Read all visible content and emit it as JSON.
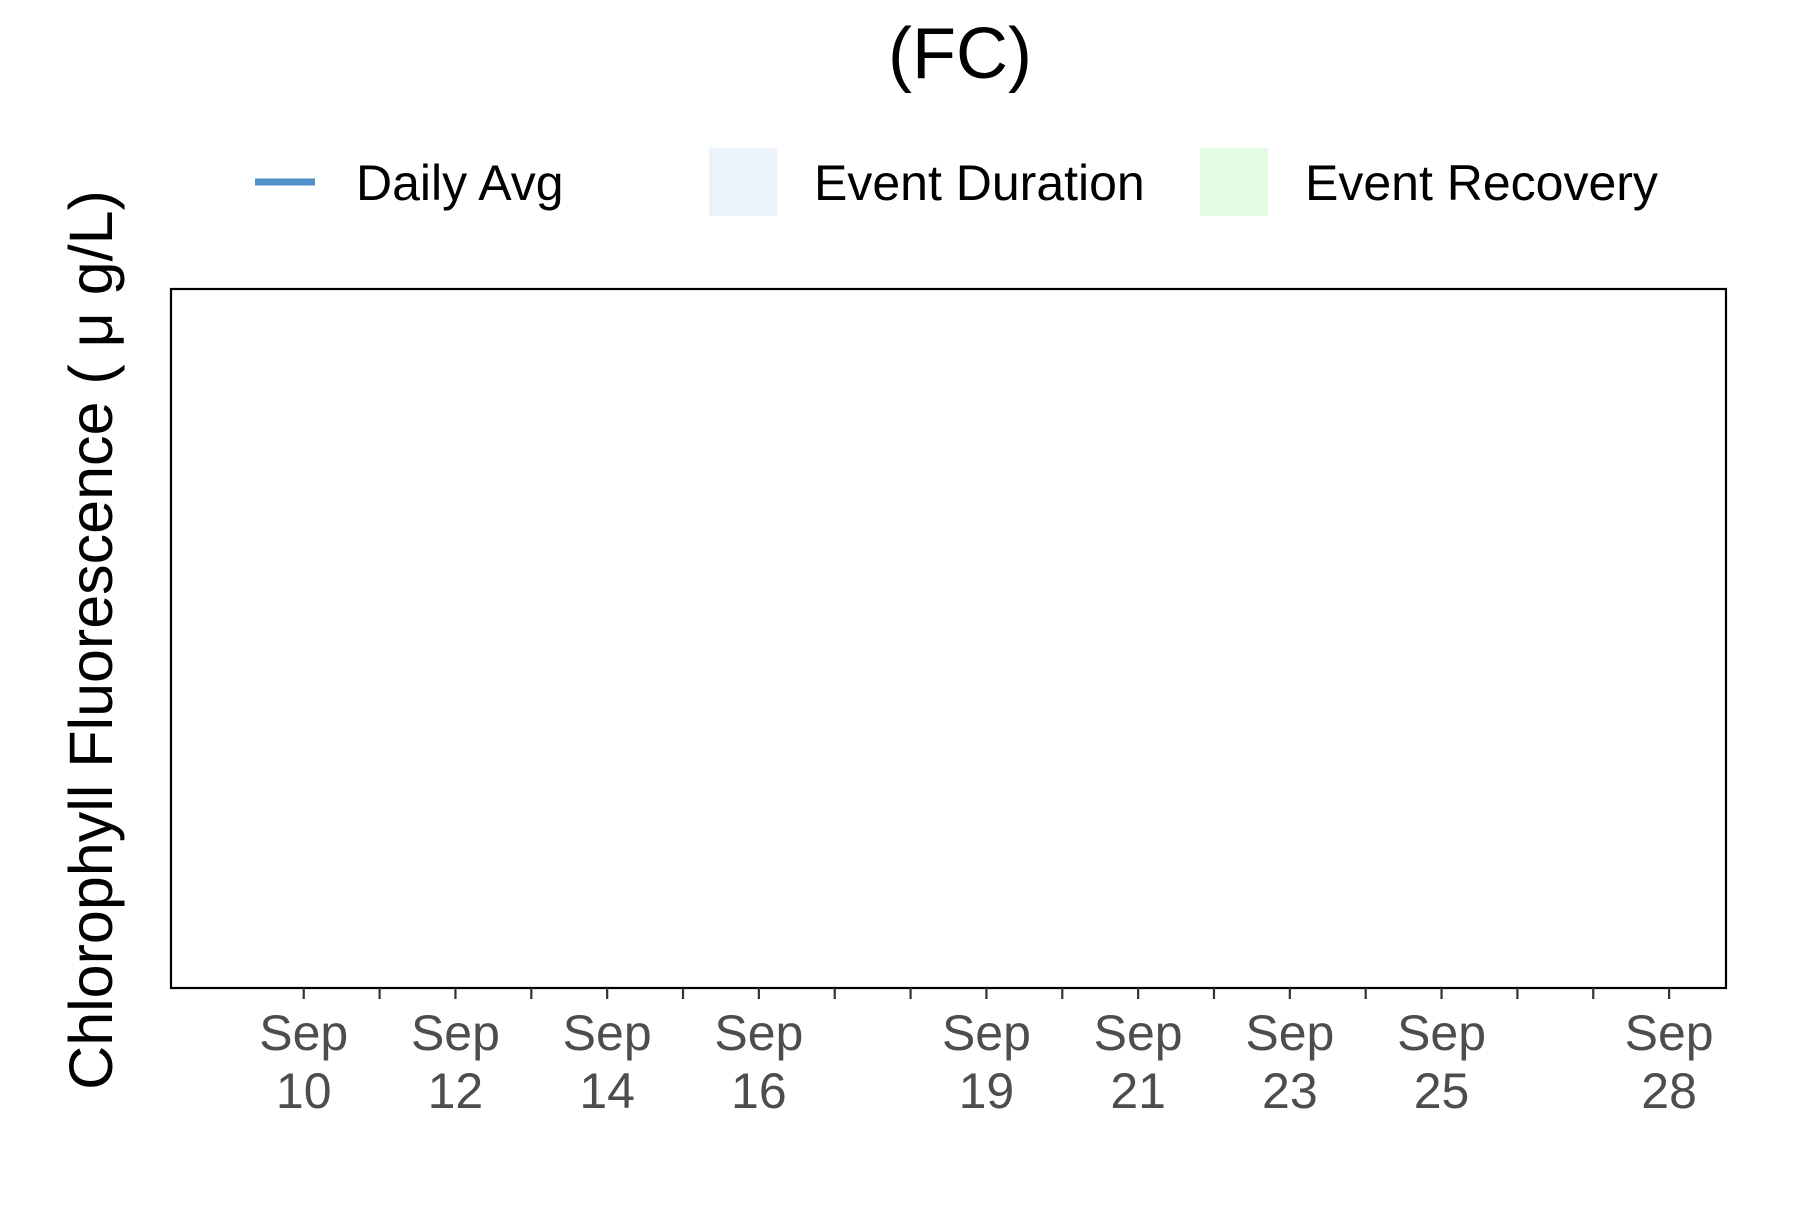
{
  "chart_data": {
    "type": "line",
    "title": "(FC)",
    "xlabel": "",
    "ylabel": "Chlorophyll Fluorescence ( μ g/L)",
    "x_range": [
      "2022-09-08T06:00",
      "2022-09-28T18:00"
    ],
    "major_ticks": [
      {
        "date": "2022-09-10",
        "label": [
          "Sep",
          "10"
        ]
      },
      {
        "date": "2022-09-12",
        "label": [
          "Sep",
          "12"
        ]
      },
      {
        "date": "2022-09-14",
        "label": [
          "Sep",
          "14"
        ]
      },
      {
        "date": "2022-09-16",
        "label": [
          "Sep",
          "16"
        ]
      },
      {
        "date": "2022-09-19",
        "label": [
          "Sep",
          "19"
        ]
      },
      {
        "date": "2022-09-21",
        "label": [
          "Sep",
          "21"
        ]
      },
      {
        "date": "2022-09-23",
        "label": [
          "Sep",
          "23"
        ]
      },
      {
        "date": "2022-09-25",
        "label": [
          "Sep",
          "25"
        ]
      },
      {
        "date": "2022-09-28",
        "label": [
          "Sep",
          "28"
        ]
      }
    ],
    "minor_ticks": [
      "2022-09-11",
      "2022-09-13",
      "2022-09-15",
      "2022-09-17",
      "2022-09-18",
      "2022-09-20",
      "2022-09-22",
      "2022-09-24",
      "2022-09-26",
      "2022-09-27"
    ],
    "legend": {
      "placement": "top",
      "items": [
        {
          "label": "Daily Avg",
          "kind": "line",
          "color": "#4f8fca"
        },
        {
          "label": "Event Duration",
          "kind": "fill",
          "color": "#ecf2fa"
        },
        {
          "label": "Event Recovery",
          "kind": "fill",
          "color": "#e2fbe2"
        }
      ]
    },
    "series": [
      {
        "name": "Daily Avg",
        "color": "#4f8fca",
        "points": []
      }
    ],
    "event_duration": [],
    "event_recovery": [],
    "grid": false
  }
}
